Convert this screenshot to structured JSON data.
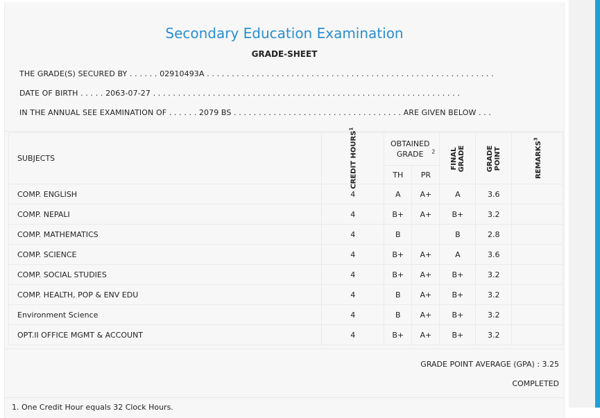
{
  "title": "Secondary Education Examination",
  "subtitle": "GRADE-SHEET",
  "info_lines": [
    "THE GRADE(S) SECURED BY . . . . . . 02910493A . . . . . . . . . . . . . . . . . . . . . . . . . . . . . . . . . . . . . . . . . . . . . . . . . . . . . . . . . .",
    "DATE OF BIRTH . . . . . 2063-07-27 . . . . . . . . . . . . . . . . . . . . . . . . . . . . . . . . . . . . . . . . . . . . . . . . . . . . . . . . . . . . . .",
    "IN THE ANNUAL SEE EXAMINATION OF . . . . . . 2079 BS . . . . . . . . . . . . . . . . . . . . . . . . . . . . . . . . . . ARE GIVEN BELOW . . ."
  ],
  "table": {
    "headers": {
      "subjects": "SUBJECTS",
      "credit_hours": "CREDIT HOURS",
      "credit_sup": "1",
      "obtained_grade": "OBTAINED GRADE",
      "obtained_sup": "2",
      "th": "TH",
      "pr": "PR",
      "final_grade": "FINAL GRADE",
      "grade_point": "GRADE POINT",
      "remarks": "REMARKS",
      "remarks_sup": "3"
    },
    "rows": [
      {
        "subject": "COMP. ENGLISH",
        "credit": "4",
        "th": "A",
        "pr": "A+",
        "final": "A",
        "gp": "3.6",
        "remarks": ""
      },
      {
        "subject": "COMP. NEPALI",
        "credit": "4",
        "th": "B+",
        "pr": "A+",
        "final": "B+",
        "gp": "3.2",
        "remarks": ""
      },
      {
        "subject": "COMP. MATHEMATICS",
        "credit": "4",
        "th": "B",
        "pr": "",
        "final": "B",
        "gp": "2.8",
        "remarks": ""
      },
      {
        "subject": "COMP. SCIENCE",
        "credit": "4",
        "th": "B+",
        "pr": "A+",
        "final": "A",
        "gp": "3.6",
        "remarks": ""
      },
      {
        "subject": "COMP. SOCIAL STUDIES",
        "credit": "4",
        "th": "B+",
        "pr": "A+",
        "final": "B+",
        "gp": "3.2",
        "remarks": ""
      },
      {
        "subject": "COMP. HEALTH, POP & ENV EDU",
        "credit": "4",
        "th": "B",
        "pr": "A+",
        "final": "B+",
        "gp": "3.2",
        "remarks": ""
      },
      {
        "subject": "Environment Science",
        "credit": "4",
        "th": "B",
        "pr": "A+",
        "final": "B+",
        "gp": "3.2",
        "remarks": ""
      },
      {
        "subject": "OPT.II OFFICE MGMT & ACCOUNT",
        "credit": "4",
        "th": "B+",
        "pr": "A+",
        "final": "B+",
        "gp": "3.2",
        "remarks": ""
      }
    ]
  },
  "gpa_text": "GRADE POINT AVERAGE (GPA) : 3.25",
  "status_text": "COMPLETED",
  "footnote": "1. One Credit Hour equals 32 Clock Hours.",
  "colors": {
    "title": "#2a8ed0",
    "accent_bar": "#1fa0d6"
  }
}
